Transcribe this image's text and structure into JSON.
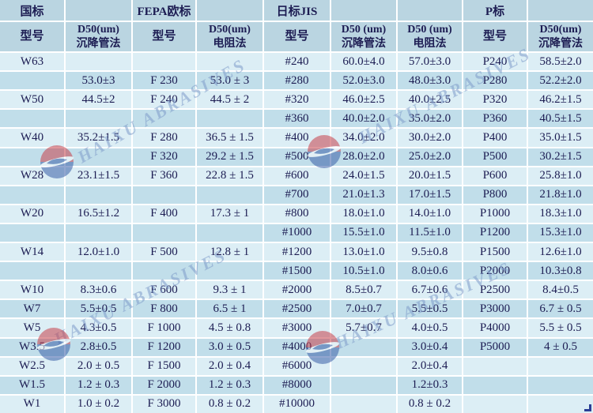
{
  "chart_data": {
    "type": "table",
    "group_headers": [
      "国标",
      "",
      "FEPA欧标",
      "",
      "日标JIS",
      "",
      "",
      "P标",
      ""
    ],
    "columns": [
      {
        "line1": "型号",
        "line2": ""
      },
      {
        "line1": "D50(um)",
        "line2": "沉降管法"
      },
      {
        "line1": "型号",
        "line2": ""
      },
      {
        "line1": "D50(um)",
        "line2": "电阻法"
      },
      {
        "line1": "型号",
        "line2": ""
      },
      {
        "line1": "D50 (um)",
        "line2": "沉降管法"
      },
      {
        "line1": "D50 (um)",
        "line2": "电阻法"
      },
      {
        "line1": "型号",
        "line2": ""
      },
      {
        "line1": "D50(um)",
        "line2": "沉降管法"
      }
    ],
    "rows": [
      [
        "W63",
        "",
        "",
        "",
        "#240",
        "60.0±4.0",
        "57.0±3.0",
        "P240",
        "58.5±2.0"
      ],
      [
        "",
        "53.0±3",
        "F 230",
        "53.0 ± 3",
        "#280",
        "52.0±3.0",
        "48.0±3.0",
        "P280",
        "52.2±2.0"
      ],
      [
        "W50",
        "44.5±2",
        "F 240",
        "44.5 ± 2",
        "#320",
        "46.0±2.5",
        "40.0±2.5",
        "P320",
        "46.2±1.5"
      ],
      [
        "",
        "",
        "",
        "",
        "#360",
        "40.0±2.0",
        "35.0±2.0",
        "P360",
        "40.5±1.5"
      ],
      [
        "W40",
        "35.2±1.5",
        "F 280",
        "36.5 ± 1.5",
        "#400",
        "34.0±2.0",
        "30.0±2.0",
        "P400",
        "35.0±1.5"
      ],
      [
        "",
        "",
        "F 320",
        "29.2 ± 1.5",
        "#500",
        "28.0±2.0",
        "25.0±2.0",
        "P500",
        "30.2±1.5"
      ],
      [
        "W28",
        "23.1±1.5",
        "F 360",
        "22.8 ± 1.5",
        "#600",
        "24.0±1.5",
        "20.0±1.5",
        "P600",
        "25.8±1.0"
      ],
      [
        "",
        "",
        "",
        "",
        "#700",
        "21.0±1.3",
        "17.0±1.5",
        "P800",
        "21.8±1.0"
      ],
      [
        "W20",
        "16.5±1.2",
        "F 400",
        "17.3 ± 1",
        "#800",
        "18.0±1.0",
        "14.0±1.0",
        "P1000",
        "18.3±1.0"
      ],
      [
        "",
        "",
        "",
        "",
        "#1000",
        "15.5±1.0",
        "11.5±1.0",
        "P1200",
        "15.3±1.0"
      ],
      [
        "W14",
        "12.0±1.0",
        "F 500",
        "12.8 ± 1",
        "#1200",
        "13.0±1.0",
        "9.5±0.8",
        "P1500",
        "12.6±1.0"
      ],
      [
        "",
        "",
        "",
        "",
        "#1500",
        "10.5±1.0",
        "8.0±0.6",
        "P2000",
        "10.3±0.8"
      ],
      [
        "W10",
        "8.3±0.6",
        "F 600",
        "9.3 ± 1",
        "#2000",
        "8.5±0.7",
        "6.7±0.6",
        "P2500",
        "8.4±0.5"
      ],
      [
        "W7",
        "5.5±0.5",
        "F 800",
        "6.5 ± 1",
        "#2500",
        "7.0±0.7",
        "5.5±0.5",
        "P3000",
        "6.7 ± 0.5"
      ],
      [
        "W5",
        "4.3±0.5",
        "F 1000",
        "4.5 ± 0.8",
        "#3000",
        "5.7±0.7",
        "4.0±0.5",
        "P4000",
        "5.5 ± 0.5"
      ],
      [
        "W3.5",
        "2.8±0.5",
        "F 1200",
        "3.0 ± 0.5",
        "#4000",
        "",
        "3.0±0.4",
        "P5000",
        "4 ± 0.5"
      ],
      [
        "W2.5",
        "2.0 ± 0.5",
        "F 1500",
        "2.0 ± 0.4",
        "#6000",
        "",
        "2.0±0.4",
        "",
        ""
      ],
      [
        "W1.5",
        "1.2 ± 0.3",
        "F 2000",
        "1.2 ± 0.3",
        "#8000",
        "",
        "1.2±0.3",
        "",
        ""
      ],
      [
        "W1",
        "1.0 ± 0.2",
        "F 3000",
        "0.8 ± 0.2",
        "#10000",
        "",
        "0.8 ± 0.2",
        "",
        ""
      ]
    ]
  },
  "watermark": {
    "text": "HAIXU ABRASIVES"
  },
  "colors": {
    "header_bg": "#bad5e1",
    "row_light": "#dceef5",
    "row_dark": "#c1deea",
    "text": "#1c1c52",
    "watermark_text": "#7d9bc8",
    "logo_red": "#c8414b",
    "logo_blue": "#3a5fa8"
  }
}
